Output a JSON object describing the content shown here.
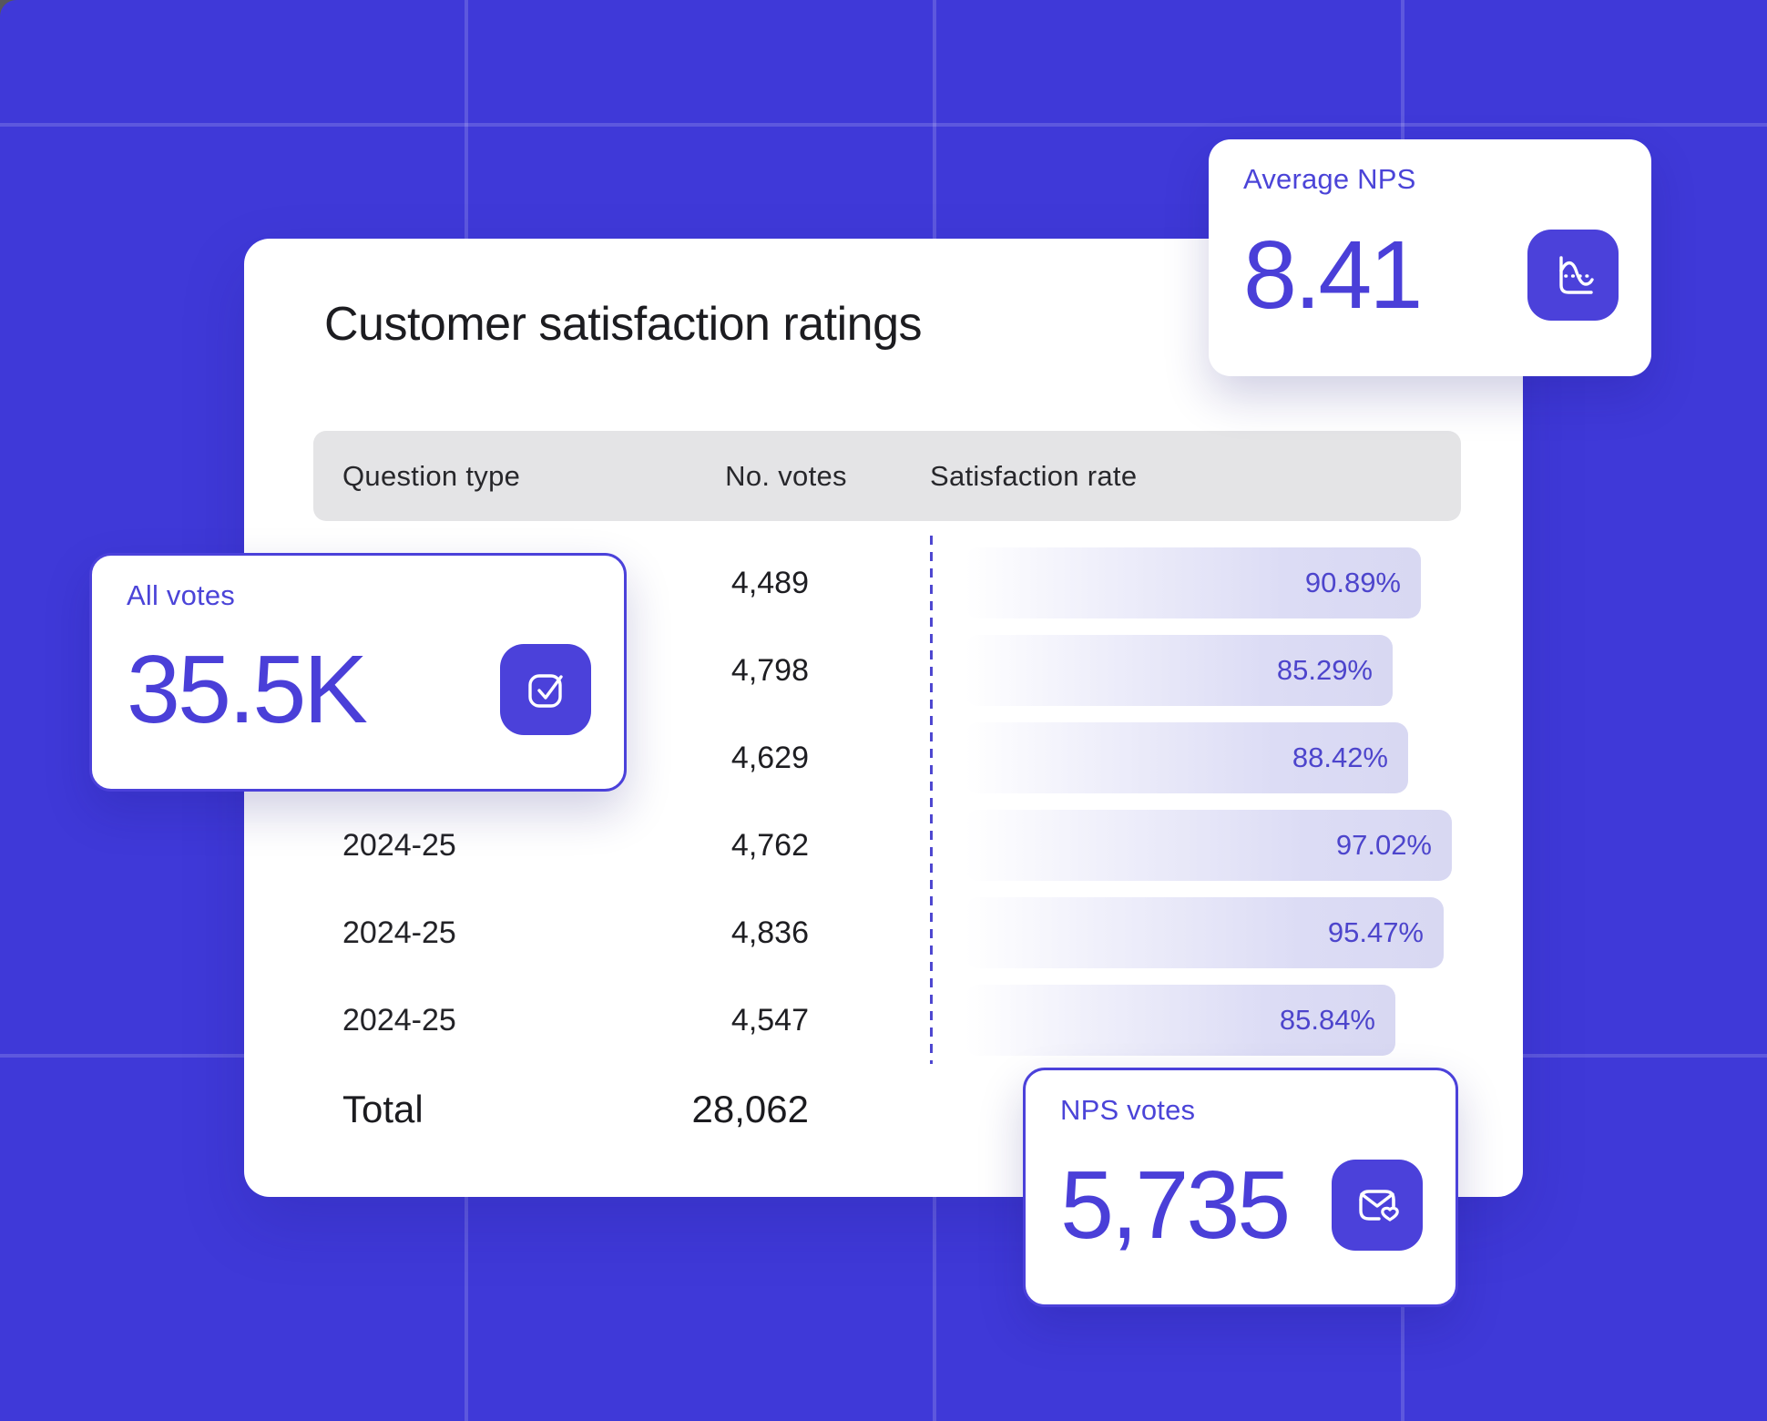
{
  "colors": {
    "background": "#3f39d8",
    "grid_line": "rgba(255,255,255,0.16)",
    "accent_purple": "#4b41da",
    "percent_text": "#4d45cc",
    "card_background": "#ffffff",
    "table_header_background": "#e4e4e6",
    "bar_fill_end": "#d8d8f2",
    "title_text": "#1c1c20"
  },
  "main_card": {
    "title": "Customer satisfaction ratings",
    "table": {
      "columns": {
        "question_type": "Question type",
        "votes": "No. votes",
        "rate": "Satisfaction rate"
      },
      "rows": [
        {
          "question_type": "",
          "votes": "4,489",
          "rate": "90.89%",
          "rate_value": 90.89
        },
        {
          "question_type": "",
          "votes": "4,798",
          "rate": "85.29%",
          "rate_value": 85.29
        },
        {
          "question_type": "",
          "votes": "4,629",
          "rate": "88.42%",
          "rate_value": 88.42
        },
        {
          "question_type": "2024-25",
          "votes": "4,762",
          "rate": "97.02%",
          "rate_value": 97.02
        },
        {
          "question_type": "2024-25",
          "votes": "4,836",
          "rate": "95.47%",
          "rate_value": 95.47
        },
        {
          "question_type": "2024-25",
          "votes": "4,547",
          "rate": "85.84%",
          "rate_value": 85.84
        }
      ],
      "total": {
        "label": "Total",
        "votes": "28,062"
      }
    }
  },
  "stat_cards": {
    "average_nps": {
      "label": "Average NPS",
      "value": "8.41",
      "icon": "line-chart-icon"
    },
    "all_votes": {
      "label": "All votes",
      "value": "35.5K",
      "icon": "checkbox-check-icon"
    },
    "nps_votes": {
      "label": "NPS votes",
      "value": "5,735",
      "icon": "mail-heart-icon"
    }
  }
}
